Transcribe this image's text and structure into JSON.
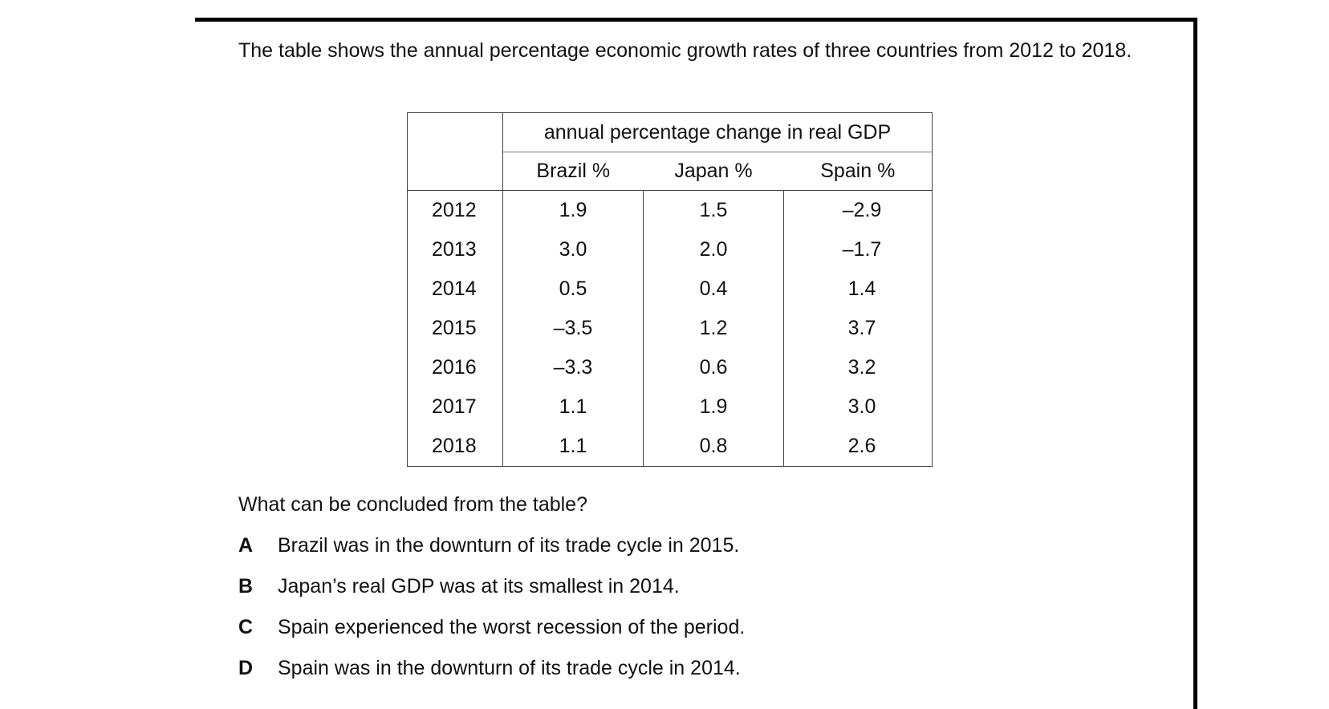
{
  "intro": "The table shows the annual percentage economic growth rates of three countries from 2012 to 2018.",
  "table": {
    "group_header": "annual percentage change in real GDP",
    "columns": [
      "Brazil %",
      "Japan %",
      "Spain %"
    ],
    "rows": [
      {
        "year": "2012",
        "values": [
          "1.9",
          "1.5",
          "–2.9"
        ]
      },
      {
        "year": "2013",
        "values": [
          "3.0",
          "2.0",
          "–1.7"
        ]
      },
      {
        "year": "2014",
        "values": [
          "0.5",
          "0.4",
          "1.4"
        ]
      },
      {
        "year": "2015",
        "values": [
          "–3.5",
          "1.2",
          "3.7"
        ]
      },
      {
        "year": "2016",
        "values": [
          "–3.3",
          "0.6",
          "3.2"
        ]
      },
      {
        "year": "2017",
        "values": [
          "1.1",
          "1.9",
          "3.0"
        ]
      },
      {
        "year": "2018",
        "values": [
          "1.1",
          "0.8",
          "2.6"
        ]
      }
    ]
  },
  "question": "What can be concluded from the table?",
  "options": [
    {
      "letter": "A",
      "text": "Brazil was in the downturn of its trade cycle in 2015."
    },
    {
      "letter": "B",
      "text": "Japan’s real GDP was at its smallest in 2014."
    },
    {
      "letter": "C",
      "text": "Spain experienced the worst recession of the period."
    },
    {
      "letter": "D",
      "text": "Spain was in the downturn of its trade cycle in 2014."
    }
  ]
}
